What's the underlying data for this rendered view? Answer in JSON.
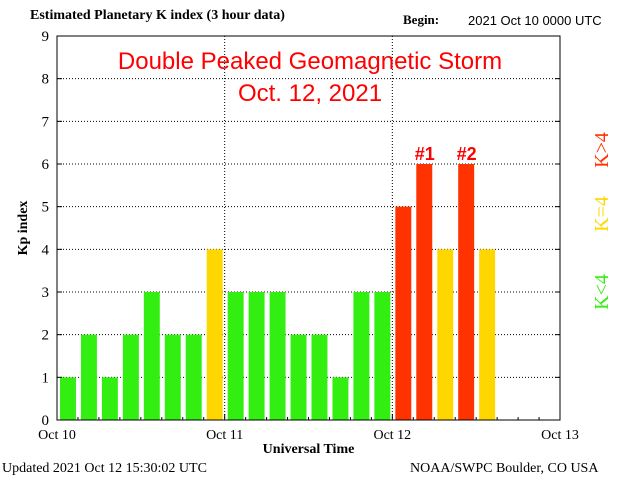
{
  "header": {
    "title": "Estimated Planetary K index (3 hour data)",
    "begin_label": "Begin:",
    "begin_value": "2021 Oct 10 0000 UTC"
  },
  "footer": {
    "updated": "Updated 2021 Oct 12 15:30:02 UTC",
    "source": "NOAA/SWPC Boulder, CO USA"
  },
  "annotation": {
    "line1": "Double Peaked Geomagnetic Storm",
    "line2": "Oct. 12, 2021",
    "peak1": "#1",
    "peak2": "#2",
    "color": "#ff0000"
  },
  "legend": {
    "high": {
      "label": "K>4",
      "color": "#ff3300"
    },
    "mid": {
      "label": "K=4",
      "color": "#ffd700"
    },
    "low": {
      "label": "K<4",
      "color": "#33ee11"
    }
  },
  "chart_data": {
    "type": "bar",
    "title": "Estimated Planetary K index (3 hour data)",
    "xlabel": "Universal Time",
    "ylabel": "Kp index",
    "ylim": [
      0,
      9
    ],
    "yticks": [
      0,
      1,
      2,
      3,
      4,
      5,
      6,
      7,
      8,
      9
    ],
    "xlim_days": [
      0,
      3
    ],
    "xtick_labels": [
      "Oct 10",
      "Oct 11",
      "Oct 12",
      "Oct 13"
    ],
    "interval_hours": 3,
    "grid": "dotted",
    "series": [
      {
        "values": [
          1,
          2,
          1,
          2,
          3,
          2,
          2,
          4,
          3,
          3,
          3,
          2,
          2,
          1,
          3,
          3,
          5,
          6,
          4,
          6,
          4
        ]
      }
    ],
    "peaks": [
      {
        "label": "#1",
        "index": 17
      },
      {
        "label": "#2",
        "index": 19
      }
    ],
    "colors": {
      "low": "#33ee11",
      "mid": "#ffd700",
      "high": "#ff3300"
    }
  }
}
